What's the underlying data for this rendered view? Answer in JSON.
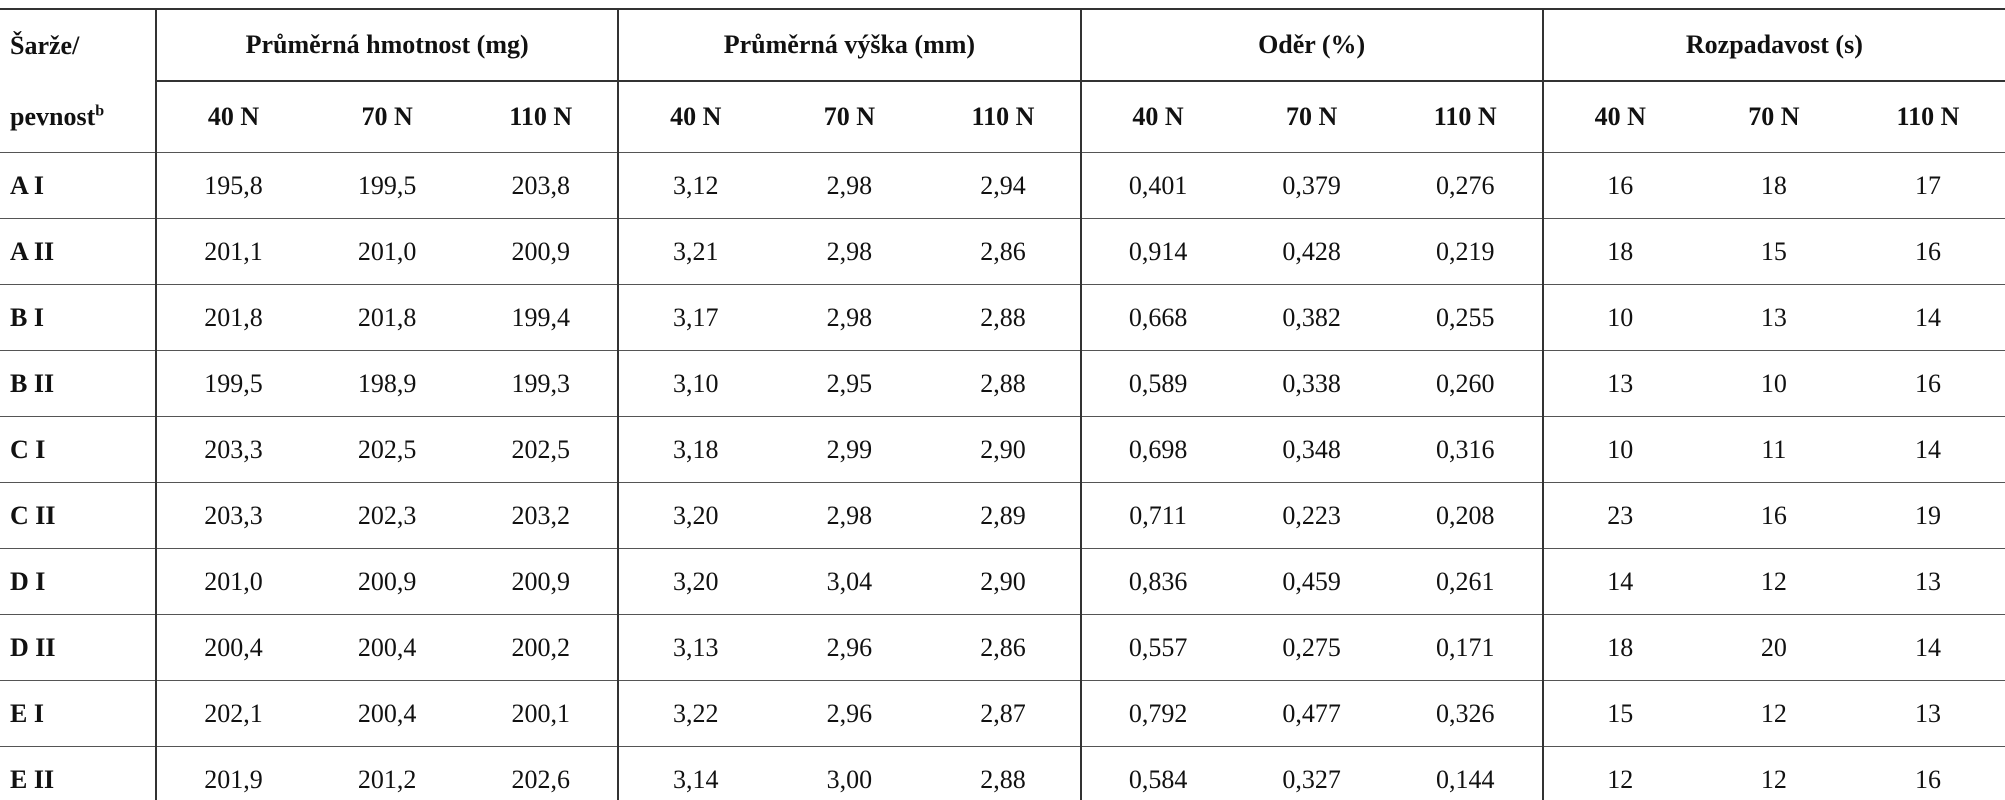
{
  "header": {
    "row_label": {
      "line1": "Šarže/",
      "line2": "pevnost",
      "footnote": "b"
    },
    "groups": [
      {
        "title": "Průměrná hmotnost (mg)",
        "subcolumns": [
          "40 N",
          "70 N",
          "110 N"
        ]
      },
      {
        "title": "Průměrná výška (mm)",
        "subcolumns": [
          "40 N",
          "70 N",
          "110 N"
        ]
      },
      {
        "title": "Oděr (%)",
        "subcolumns": [
          "40 N",
          "70 N",
          "110 N"
        ]
      },
      {
        "title": "Rozpadavost (s)",
        "subcolumns": [
          "40 N",
          "70 N",
          "110 N"
        ]
      }
    ]
  },
  "rows": [
    {
      "label": "A I",
      "cells": [
        "195,8",
        "199,5",
        "203,8",
        "3,12",
        "2,98",
        "2,94",
        "0,401",
        "0,379",
        "0,276",
        "16",
        "18",
        "17"
      ]
    },
    {
      "label": "A II",
      "cells": [
        "201,1",
        "201,0",
        "200,9",
        "3,21",
        "2,98",
        "2,86",
        "0,914",
        "0,428",
        "0,219",
        "18",
        "15",
        "16"
      ]
    },
    {
      "label": "B I",
      "cells": [
        "201,8",
        "201,8",
        "199,4",
        "3,17",
        "2,98",
        "2,88",
        "0,668",
        "0,382",
        "0,255",
        "10",
        "13",
        "14"
      ]
    },
    {
      "label": "B II",
      "cells": [
        "199,5",
        "198,9",
        "199,3",
        "3,10",
        "2,95",
        "2,88",
        "0,589",
        "0,338",
        "0,260",
        "13",
        "10",
        "16"
      ]
    },
    {
      "label": "C I",
      "cells": [
        "203,3",
        "202,5",
        "202,5",
        "3,18",
        "2,99",
        "2,90",
        "0,698",
        "0,348",
        "0,316",
        "10",
        "11",
        "14"
      ]
    },
    {
      "label": "C II",
      "cells": [
        "203,3",
        "202,3",
        "203,2",
        "3,20",
        "2,98",
        "2,89",
        "0,711",
        "0,223",
        "0,208",
        "23",
        "16",
        "19"
      ]
    },
    {
      "label": "D I",
      "cells": [
        "201,0",
        "200,9",
        "200,9",
        "3,20",
        "3,04",
        "2,90",
        "0,836",
        "0,459",
        "0,261",
        "14",
        "12",
        "13"
      ]
    },
    {
      "label": "D II",
      "cells": [
        "200,4",
        "200,4",
        "200,2",
        "3,13",
        "2,96",
        "2,86",
        "0,557",
        "0,275",
        "0,171",
        "18",
        "20",
        "14"
      ]
    },
    {
      "label": "E I",
      "cells": [
        "202,1",
        "200,4",
        "200,1",
        "3,22",
        "2,96",
        "2,87",
        "0,792",
        "0,477",
        "0,326",
        "15",
        "12",
        "13"
      ]
    },
    {
      "label": "E II",
      "cells": [
        "201,9",
        "201,2",
        "202,6",
        "3,14",
        "3,00",
        "2,88",
        "0,584",
        "0,327",
        "0,144",
        "12",
        "12",
        "16"
      ]
    }
  ]
}
